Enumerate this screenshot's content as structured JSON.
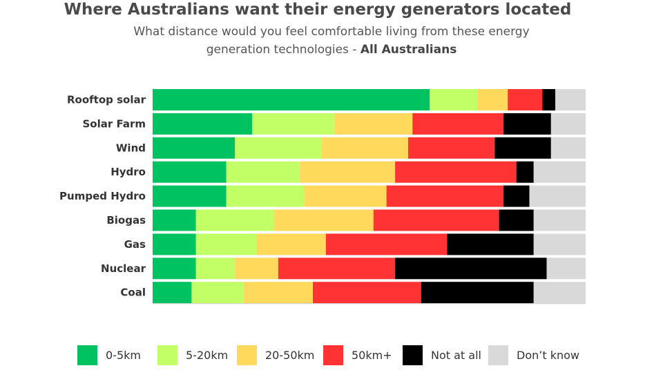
{
  "chart_data": {
    "type": "bar",
    "orientation": "horizontal",
    "stacked": "100%",
    "title": "Where Australians want their energy generators located",
    "subtitle": "What distance would you feel comfortable living from these energy generation technologies - ",
    "subtitle_bold": "All Australians",
    "categories": [
      "Rooftop solar",
      "Solar Farm",
      "Wind",
      "Hydro",
      "Pumped Hydro",
      "Biogas",
      "Gas",
      "Nuclear",
      "Coal"
    ],
    "series": [
      {
        "name": "0-5km",
        "color": "#00c261",
        "values": [
          64,
          23,
          19,
          17,
          17,
          10,
          10,
          10,
          9
        ]
      },
      {
        "name": "5-20km",
        "color": "#c2ff66",
        "values": [
          11,
          19,
          20,
          17,
          18,
          18,
          14,
          9,
          12
        ]
      },
      {
        "name": "20-50km",
        "color": "#ffd95c",
        "values": [
          7,
          18,
          20,
          22,
          19,
          23,
          16,
          10,
          16
        ]
      },
      {
        "name": "50km+",
        "color": "#ff3333",
        "values": [
          8,
          21,
          20,
          28,
          27,
          29,
          28,
          27,
          25
        ]
      },
      {
        "name": "Not at all",
        "color": "#000000",
        "values": [
          3,
          11,
          13,
          4,
          6,
          8,
          20,
          35,
          26
        ]
      },
      {
        "name": "Don’t know",
        "color": "#d9d9d9",
        "values": [
          7,
          8,
          8,
          12,
          13,
          12,
          12,
          9,
          12
        ]
      }
    ],
    "xlim": [
      0,
      100
    ],
    "grid": false,
    "legend_position": "bottom"
  }
}
